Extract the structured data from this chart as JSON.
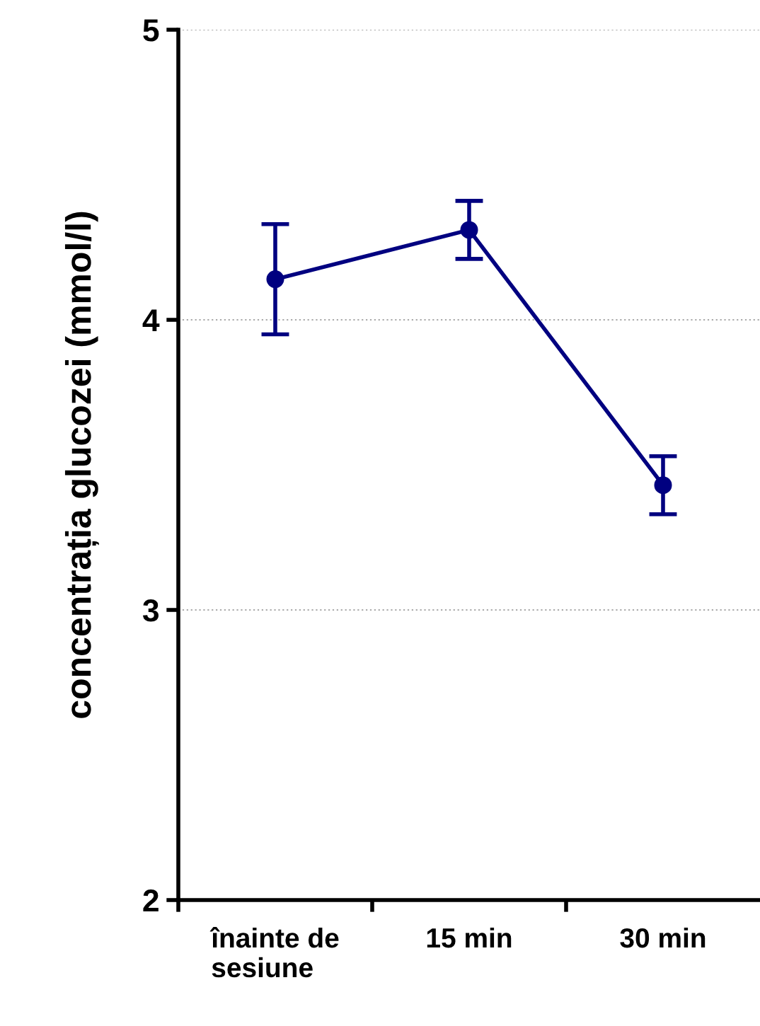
{
  "chart_data": {
    "type": "line",
    "ylabel": "concentrația glucozei (mmol/l)",
    "categories": [
      "înainte de\nsesiune",
      "15 min",
      "30 min"
    ],
    "series": [
      {
        "color": "#000080",
        "values": [
          4.14,
          4.31,
          3.43
        ],
        "errors": [
          0.19,
          0.1,
          0.1
        ]
      }
    ],
    "ylim": [
      2,
      5
    ],
    "yticks": [
      2,
      3,
      4,
      5
    ],
    "grid": "y",
    "marker": "circle",
    "line_style": "solid"
  }
}
